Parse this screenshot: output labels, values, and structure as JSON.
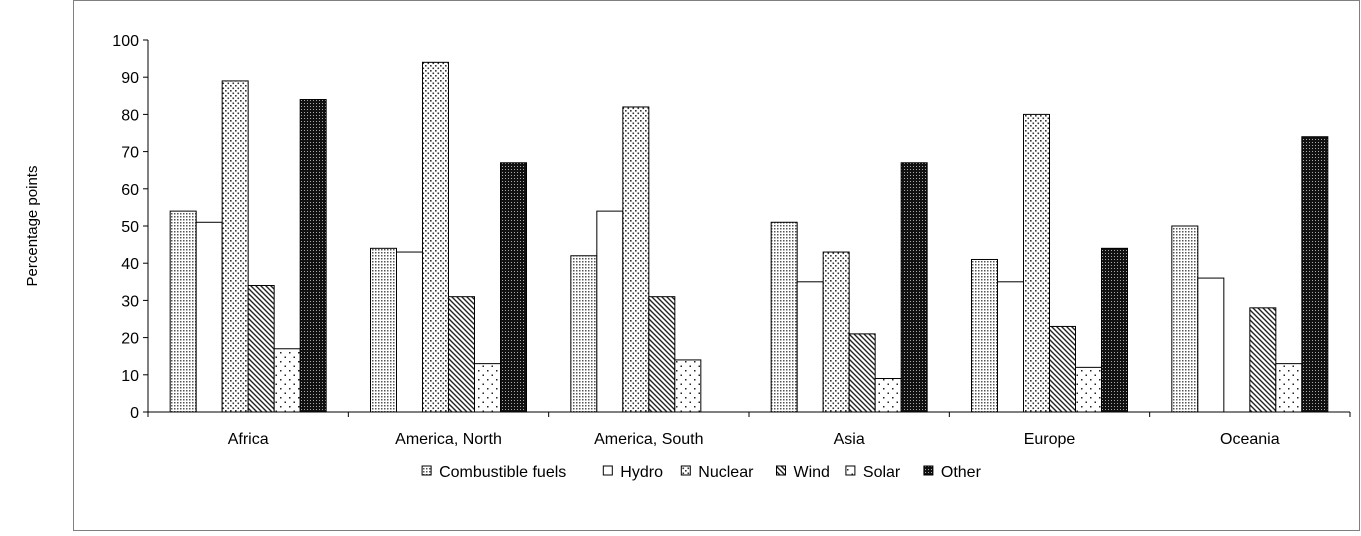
{
  "chart_data": {
    "type": "bar",
    "title": "",
    "xlabel": "",
    "ylabel": "Percentage points",
    "ylim": [
      0,
      100
    ],
    "yticks": [
      "0",
      "10",
      "20",
      "30",
      "40",
      "50",
      "60",
      "70",
      "80",
      "90",
      "100"
    ],
    "grid": false,
    "legend_position": "bottom",
    "categories": [
      "Africa",
      "America, North",
      "America, South",
      "Asia",
      "Europe",
      "Oceania"
    ],
    "series": [
      {
        "name": "Combustible fuels",
        "pattern": "fine-dots",
        "values": [
          54,
          44,
          42,
          51,
          41,
          50
        ]
      },
      {
        "name": "Hydro",
        "pattern": "solid-white",
        "values": [
          51,
          43,
          54,
          35,
          35,
          36
        ]
      },
      {
        "name": "Nuclear",
        "pattern": "coarse-dots",
        "values": [
          89,
          94,
          82,
          43,
          80,
          0
        ]
      },
      {
        "name": "Wind",
        "pattern": "diagonal-lines",
        "values": [
          34,
          31,
          31,
          21,
          23,
          28
        ]
      },
      {
        "name": "Solar",
        "pattern": "sparse-dots",
        "values": [
          17,
          13,
          14,
          9,
          12,
          13
        ]
      },
      {
        "name": "Other",
        "pattern": "dark-dots",
        "values": [
          84,
          67,
          0,
          67,
          44,
          74
        ]
      }
    ]
  }
}
